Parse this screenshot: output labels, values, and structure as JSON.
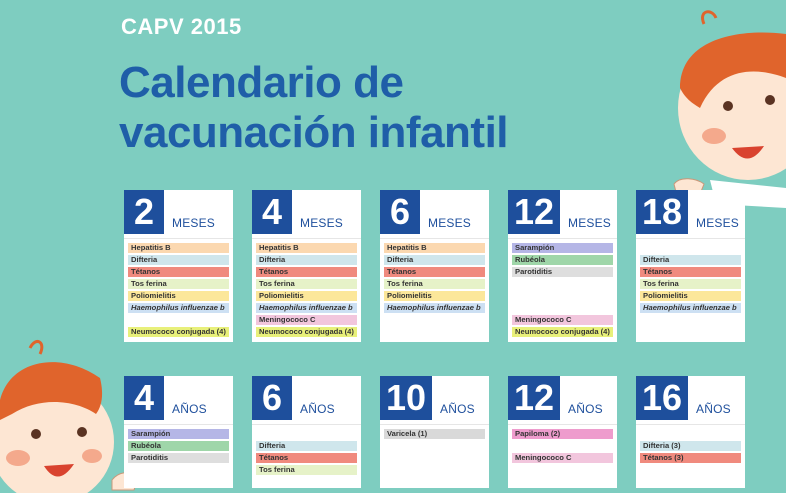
{
  "header": {
    "subtitle": "CAPV 2015",
    "title_line1": "Calendario de",
    "title_line2": "vacunación infantil"
  },
  "colors": {
    "background": "#7ecdc0",
    "title": "#1f5ea8",
    "number_box": "#1e4f9c",
    "hepatitis_b": "#fbd8b0",
    "difteria": "#cfe6ec",
    "tetanos": "#f08a7e",
    "tos_ferina": "#e6f2c8",
    "poliomielitis": "#fce79a",
    "haemophilus": "#cde0f3",
    "meningococo": "#f2c6dd",
    "neumococo": "#e8f07a",
    "sarampion": "#b5b6e6",
    "rubeola": "#9fd6a9",
    "parotiditis": "#dedede",
    "varicela": "#d9d9d9",
    "papiloma": "#ee9ccd"
  },
  "row1": [
    {
      "num": "2",
      "unit": "MESES",
      "items": [
        {
          "label": "Hepatitis B",
          "color": "#fbd8b0"
        },
        {
          "label": "Difteria",
          "color": "#cfe6ec"
        },
        {
          "label": "Tétanos",
          "color": "#f08a7e"
        },
        {
          "label": "Tos ferina",
          "color": "#e6f2c8"
        },
        {
          "label": "Poliomielitis",
          "color": "#fce79a"
        },
        {
          "label": "Haemophilus influenzae b",
          "color": "#cde0f3",
          "italic": true
        },
        {
          "gap": true
        },
        {
          "label": "Neumococo conjugada (4)",
          "color": "#e8f07a"
        }
      ]
    },
    {
      "num": "4",
      "unit": "MESES",
      "items": [
        {
          "label": "Hepatitis B",
          "color": "#fbd8b0"
        },
        {
          "label": "Difteria",
          "color": "#cfe6ec"
        },
        {
          "label": "Tétanos",
          "color": "#f08a7e"
        },
        {
          "label": "Tos ferina",
          "color": "#e6f2c8"
        },
        {
          "label": "Poliomielitis",
          "color": "#fce79a"
        },
        {
          "label": "Haemophilus influenzae b",
          "color": "#cde0f3",
          "italic": true
        },
        {
          "label": "Meningococo C",
          "color": "#f2c6dd"
        },
        {
          "label": "Neumococo conjugada (4)",
          "color": "#e8f07a"
        }
      ]
    },
    {
      "num": "6",
      "unit": "MESES",
      "items": [
        {
          "label": "Hepatitis B",
          "color": "#fbd8b0"
        },
        {
          "label": "Difteria",
          "color": "#cfe6ec"
        },
        {
          "label": "Tétanos",
          "color": "#f08a7e"
        },
        {
          "label": "Tos ferina",
          "color": "#e6f2c8"
        },
        {
          "label": "Poliomielitis",
          "color": "#fce79a"
        },
        {
          "label": "Haemophilus influenzae b",
          "color": "#cde0f3",
          "italic": true
        }
      ]
    },
    {
      "num": "12",
      "unit": "MESES",
      "items": [
        {
          "label": "Sarampión",
          "color": "#b5b6e6"
        },
        {
          "label": "Rubéola",
          "color": "#9fd6a9"
        },
        {
          "label": "Parotiditis",
          "color": "#dedede"
        },
        {
          "gap": true
        },
        {
          "gap": true
        },
        {
          "gap": true
        },
        {
          "label": "Meningococo C",
          "color": "#f2c6dd"
        },
        {
          "label": "Neumococo conjugada (4)",
          "color": "#e8f07a"
        }
      ]
    },
    {
      "num": "18",
      "unit": "MESES",
      "items": [
        {
          "gap": true
        },
        {
          "label": "Difteria",
          "color": "#cfe6ec"
        },
        {
          "label": "Tétanos",
          "color": "#f08a7e"
        },
        {
          "label": "Tos ferina",
          "color": "#e6f2c8"
        },
        {
          "label": "Poliomielitis",
          "color": "#fce79a"
        },
        {
          "label": "Haemophilus influenzae b",
          "color": "#cde0f3",
          "italic": true
        }
      ]
    }
  ],
  "row2": [
    {
      "num": "4",
      "unit": "AÑOS",
      "items": [
        {
          "label": "Sarampión",
          "color": "#b5b6e6"
        },
        {
          "label": "Rubéola",
          "color": "#9fd6a9"
        },
        {
          "label": "Parotiditis",
          "color": "#dedede"
        }
      ]
    },
    {
      "num": "6",
      "unit": "AÑOS",
      "items": [
        {
          "gap": true
        },
        {
          "label": "Difteria",
          "color": "#cfe6ec"
        },
        {
          "label": "Tétanos",
          "color": "#f08a7e"
        },
        {
          "label": "Tos ferina",
          "color": "#e6f2c8"
        }
      ]
    },
    {
      "num": "10",
      "unit": "AÑOS",
      "items": [
        {
          "label": "Varicela (1)",
          "color": "#d9d9d9"
        }
      ]
    },
    {
      "num": "12",
      "unit": "AÑOS",
      "items": [
        {
          "label": "Papiloma (2)",
          "color": "#ee9ccd"
        },
        {
          "gap": true
        },
        {
          "label": "Meningococo C",
          "color": "#f2c6dd"
        }
      ]
    },
    {
      "num": "16",
      "unit": "AÑOS",
      "items": [
        {
          "gap": true
        },
        {
          "label": "Difteria (3)",
          "color": "#cfe6ec"
        },
        {
          "label": "Tétanos (3)",
          "color": "#f08a7e"
        }
      ]
    }
  ]
}
